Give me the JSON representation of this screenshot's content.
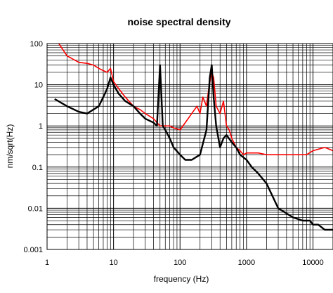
{
  "chart_data": {
    "type": "line",
    "title": "noise spectral density",
    "xlabel": "frequency (Hz)",
    "ylabel": "nm/sqrt(Hz)",
    "x_scale": "log",
    "y_scale": "log",
    "xlim": [
      1,
      20000
    ],
    "ylim": [
      0.001,
      100
    ],
    "x_ticks": [
      1,
      10,
      100,
      1000,
      10000
    ],
    "x_tick_labels": [
      "1",
      "10",
      "100",
      "1000",
      "10000"
    ],
    "y_ticks": [
      0.001,
      0.01,
      0.1,
      1,
      10,
      100
    ],
    "y_tick_labels": [
      "0.001",
      "0.01",
      "0.1",
      "1",
      "10",
      "100"
    ],
    "grid": true,
    "legend": "none",
    "series": [
      {
        "color": "#ff0000",
        "x": [
          1.5,
          2,
          3,
          4,
          5,
          6,
          7,
          8,
          9,
          10,
          12,
          15,
          20,
          25,
          30,
          40,
          45,
          50,
          60,
          70,
          80,
          100,
          120,
          150,
          180,
          200,
          220,
          250,
          270,
          300,
          320,
          350,
          400,
          450,
          500,
          550,
          600,
          700,
          800,
          900,
          1000,
          1200,
          1500,
          2000,
          3000,
          5000,
          8000,
          10000,
          15000,
          20000
        ],
        "y": [
          100,
          50,
          35,
          33,
          30,
          25,
          22,
          20,
          25,
          12,
          8,
          5,
          3,
          2.5,
          2,
          1.5,
          1.2,
          1.0,
          1.0,
          1.0,
          0.9,
          0.8,
          1.2,
          2.0,
          3.0,
          2.0,
          5.0,
          3.0,
          8.0,
          20,
          15,
          3.0,
          2.0,
          4.0,
          1.0,
          0.8,
          0.5,
          0.3,
          0.25,
          0.2,
          0.22,
          0.22,
          0.22,
          0.2,
          0.2,
          0.2,
          0.2,
          0.25,
          0.3,
          0.25
        ]
      },
      {
        "color": "#000000",
        "x": [
          1.3,
          2,
          3,
          4,
          5,
          6,
          7,
          8,
          9,
          10,
          12,
          15,
          20,
          25,
          30,
          40,
          45,
          50,
          55,
          60,
          70,
          80,
          100,
          120,
          150,
          200,
          250,
          280,
          300,
          320,
          350,
          400,
          450,
          500,
          600,
          700,
          800,
          1000,
          1200,
          1500,
          2000,
          3000,
          5000,
          7000,
          8000,
          9000,
          10000,
          12000,
          15000,
          20000
        ],
        "y": [
          4.5,
          3.0,
          2.2,
          2.0,
          2.5,
          3.0,
          5.0,
          8.0,
          15,
          10,
          6,
          4,
          3,
          2,
          1.5,
          1.2,
          1.0,
          30,
          1.0,
          0.8,
          0.5,
          0.3,
          0.2,
          0.15,
          0.15,
          0.2,
          0.8,
          15,
          30,
          5,
          1,
          0.3,
          0.5,
          0.6,
          0.4,
          0.3,
          0.2,
          0.15,
          0.1,
          0.07,
          0.04,
          0.01,
          0.006,
          0.005,
          0.005,
          0.005,
          0.004,
          0.004,
          0.003,
          0.003
        ]
      }
    ]
  }
}
